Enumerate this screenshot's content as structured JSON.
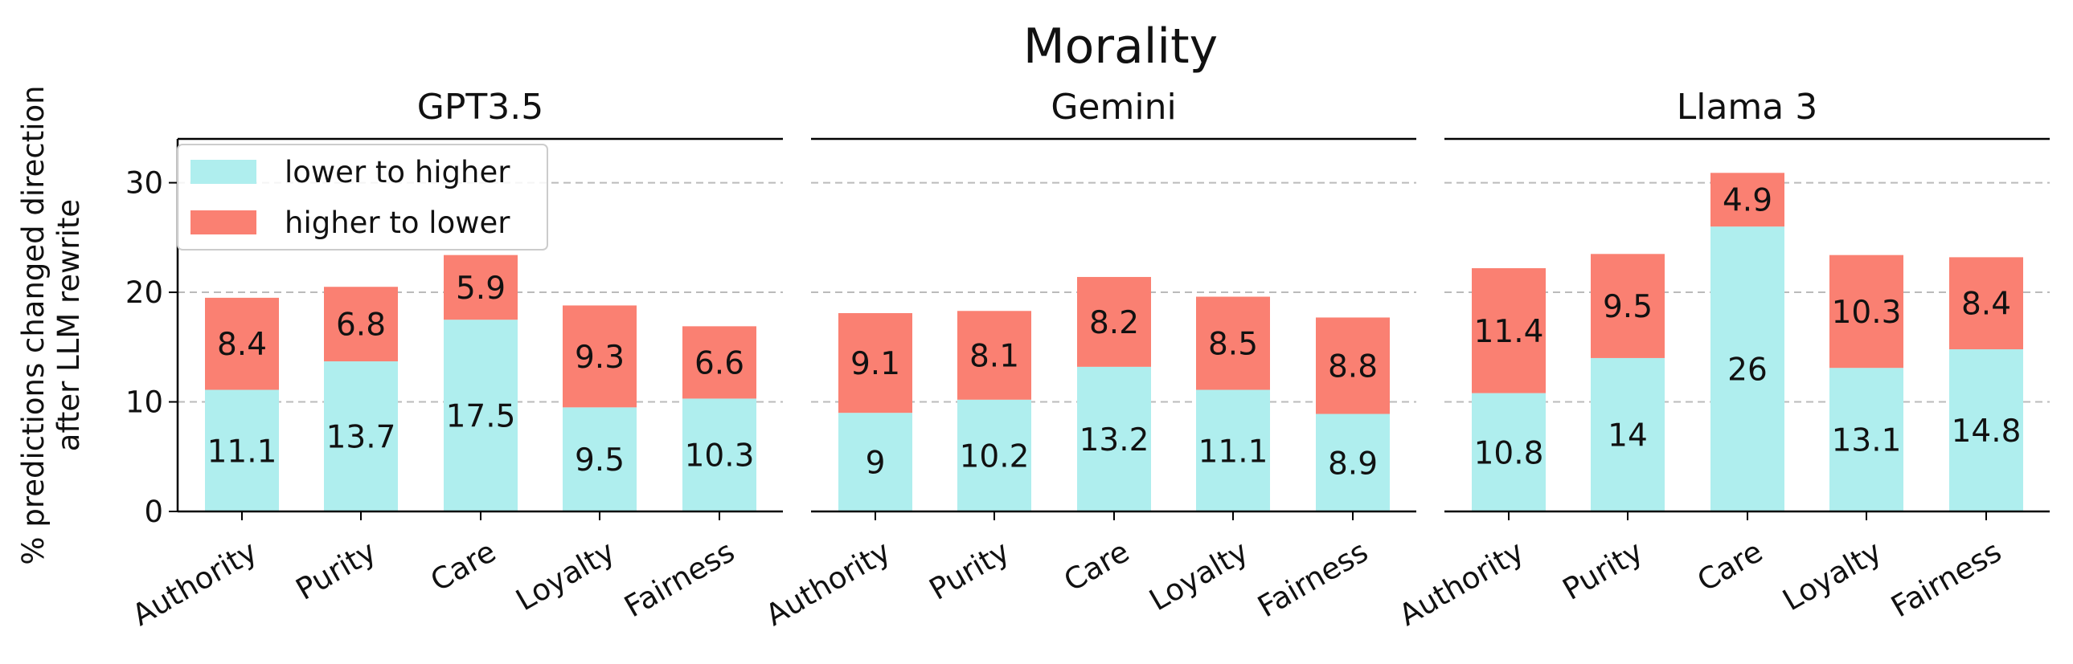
{
  "colors": {
    "lower_to_higher": "#AFEEEE",
    "higher_to_lower": "#FA8072",
    "axis": "#000000",
    "grid": "#BBBBBB"
  },
  "chart_data": {
    "type": "bar",
    "stacked": true,
    "title": "Morality",
    "ylabel": "% predictions changed direction\nafter LLM rewrite",
    "ylim": [
      0,
      34
    ],
    "yticks": [
      0,
      10,
      20,
      30
    ],
    "grid": "horizontal dashed",
    "legend": {
      "placement": "top-left",
      "entries": [
        "lower to higher",
        "higher to lower"
      ]
    },
    "categories": [
      "Authority",
      "Purity",
      "Care",
      "Loyalty",
      "Fairness"
    ],
    "panels": [
      {
        "title": "GPT3.5",
        "series": [
          {
            "name": "lower to higher",
            "values": [
              11.1,
              13.7,
              17.5,
              9.5,
              10.3
            ]
          },
          {
            "name": "higher to lower",
            "values": [
              8.4,
              6.8,
              5.9,
              9.3,
              6.6
            ]
          }
        ]
      },
      {
        "title": "Gemini",
        "series": [
          {
            "name": "lower to higher",
            "values": [
              9,
              10.2,
              13.2,
              11.1,
              8.9
            ]
          },
          {
            "name": "higher to lower",
            "values": [
              9.1,
              8.1,
              8.2,
              8.5,
              8.8
            ]
          }
        ]
      },
      {
        "title": "Llama 3",
        "series": [
          {
            "name": "lower to higher",
            "values": [
              10.8,
              14,
              26,
              13.1,
              14.8
            ]
          },
          {
            "name": "higher to lower",
            "values": [
              11.4,
              9.5,
              4.9,
              10.3,
              8.4
            ]
          }
        ]
      }
    ]
  }
}
